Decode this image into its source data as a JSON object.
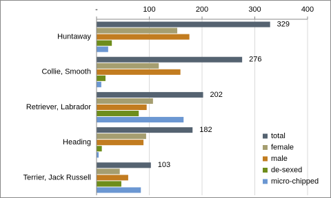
{
  "chart_data": {
    "type": "bar",
    "orientation": "horizontal",
    "categories": [
      "Huntaway",
      "Collie, Smooth",
      "Retriever, Labrador",
      "Heading",
      "Terrier, Jack Russell"
    ],
    "series": [
      {
        "name": "total",
        "color": "#556371",
        "values": [
          329,
          276,
          202,
          182,
          103
        ]
      },
      {
        "name": "female",
        "color": "#a59e70",
        "values": [
          153,
          118,
          107,
          94,
          44
        ]
      },
      {
        "name": "male",
        "color": "#c27c20",
        "values": [
          176,
          159,
          95,
          89,
          60
        ]
      },
      {
        "name": "de-sexed",
        "color": "#6e8d1b",
        "values": [
          29,
          17,
          80,
          10,
          47
        ]
      },
      {
        "name": "micro-chipped",
        "color": "#6b97d2",
        "values": [
          22,
          9,
          165,
          4,
          84
        ]
      }
    ],
    "xlim": [
      0,
      400
    ],
    "xticks": [
      {
        "value": 0,
        "label": "-"
      },
      100,
      200,
      300,
      400
    ],
    "grid": true,
    "legend": "right",
    "data_labels_series": 0
  }
}
